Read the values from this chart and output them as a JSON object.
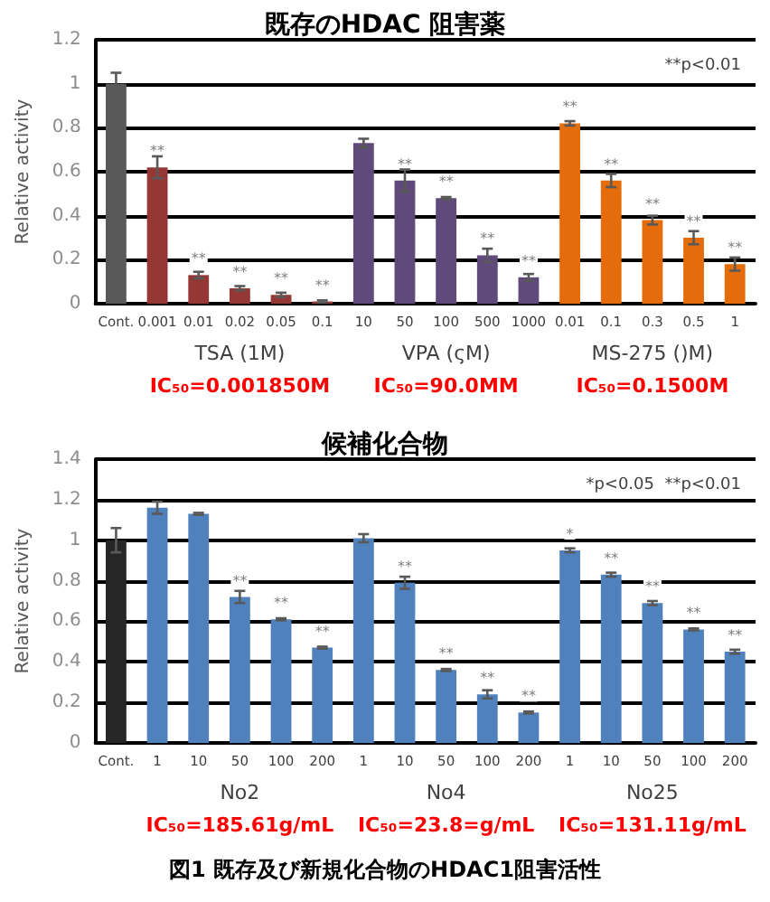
{
  "chart_data": [
    {
      "type": "bar",
      "title": "既存のHDAC 阻害薬",
      "ylabel": "Relative activity",
      "categories": [
        "Cont.",
        "0.001",
        "0.01",
        "0.02",
        "0.05",
        "0.1",
        "10",
        "50",
        "100",
        "500",
        "1000",
        "0.01",
        "0.1",
        "0.3",
        "0.5",
        "1"
      ],
      "values": [
        1.0,
        0.62,
        0.13,
        0.07,
        0.04,
        0.01,
        0.73,
        0.56,
        0.48,
        0.22,
        0.12,
        0.82,
        0.56,
        0.38,
        0.3,
        0.18
      ],
      "errors": [
        0.05,
        0.05,
        0.015,
        0.01,
        0.01,
        0.005,
        0.02,
        0.05,
        0.005,
        0.03,
        0.015,
        0.01,
        0.03,
        0.02,
        0.03,
        0.03
      ],
      "colors": [
        "#595959",
        "#953735",
        "#953735",
        "#953735",
        "#953735",
        "#953735",
        "#604a7b",
        "#604a7b",
        "#604a7b",
        "#604a7b",
        "#604a7b",
        "#e46c0a",
        "#e46c0a",
        "#e46c0a",
        "#e46c0a",
        "#e46c0a"
      ],
      "value_labels": [
        null,
        "**",
        "**",
        "**",
        "**",
        "**",
        null,
        "**",
        "**",
        "**",
        "**",
        "**",
        "**",
        "**",
        "**",
        "**"
      ],
      "ylim": [
        0,
        1.2
      ],
      "yticks": [
        0,
        0.2,
        0.4,
        0.6,
        0.8,
        1,
        1.2
      ],
      "grid": "y",
      "annotations": [
        "**p<0.01",
        "TSA (1M)",
        "VPA (ςM)",
        "MS-275 ()M)",
        "IC₅₀=0.001850M",
        "IC₅₀=90.0MM",
        "IC₅₀=0.1500M"
      ]
    },
    {
      "type": "bar",
      "title": "候補化合物",
      "ylabel": "Relative activity",
      "categories": [
        "Cont.",
        "1",
        "10",
        "50",
        "100",
        "200",
        "1",
        "10",
        "50",
        "100",
        "200",
        "1",
        "10",
        "50",
        "100",
        "200"
      ],
      "values": [
        1.0,
        1.16,
        1.13,
        0.72,
        0.61,
        0.47,
        1.01,
        0.79,
        0.36,
        0.24,
        0.15,
        0.95,
        0.83,
        0.69,
        0.56,
        0.45
      ],
      "errors": [
        0.06,
        0.03,
        0.005,
        0.03,
        0.005,
        0.005,
        0.02,
        0.03,
        0.005,
        0.02,
        0.005,
        0.01,
        0.01,
        0.01,
        0.005,
        0.01
      ],
      "colors": [
        "#262626",
        "#4f81bd",
        "#4f81bd",
        "#4f81bd",
        "#4f81bd",
        "#4f81bd",
        "#4f81bd",
        "#4f81bd",
        "#4f81bd",
        "#4f81bd",
        "#4f81bd",
        "#4f81bd",
        "#4f81bd",
        "#4f81bd",
        "#4f81bd",
        "#4f81bd"
      ],
      "value_labels": [
        null,
        null,
        null,
        "**",
        "**",
        "**",
        null,
        "**",
        "**",
        "**",
        "**",
        "*",
        "**",
        "**",
        "**",
        "**"
      ],
      "ylim": [
        0,
        1.4
      ],
      "yticks": [
        0,
        0.2,
        0.4,
        0.6,
        0.8,
        1,
        1.2,
        1.4
      ],
      "grid": "y",
      "annotations": [
        "*p<0.05  **p<0.01",
        "No2",
        "No4",
        "No25",
        "IC₅₀=185.61g/mL",
        "IC₅₀=23.8=g/mL",
        "IC₅₀=131.11g/mL",
        "図1 既存及び新規化合物のHDAC1阻害活性"
      ]
    }
  ]
}
